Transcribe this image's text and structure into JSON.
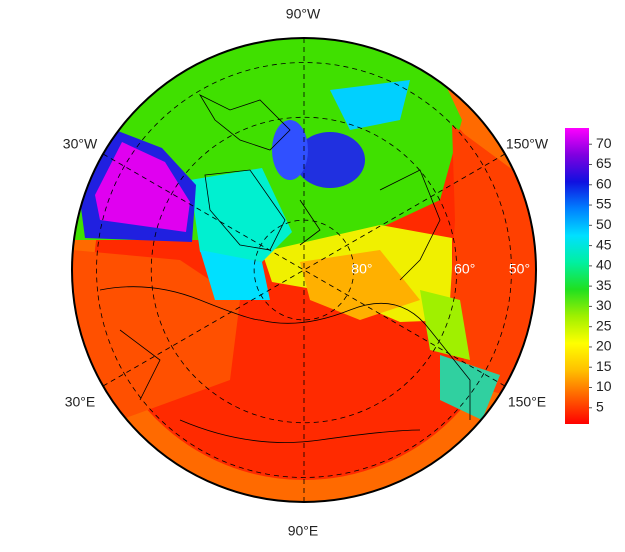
{
  "map": {
    "lon_labels": [
      "90°W",
      "150°W",
      "150°E",
      "90°E",
      "30°E",
      "30°W"
    ],
    "lat_circles": [
      {
        "value": 80,
        "label": "80°"
      },
      {
        "value": 60,
        "label": "60°"
      },
      {
        "value": 50,
        "label": "50°"
      }
    ],
    "colorbar": {
      "range": [
        1,
        74
      ],
      "ticks": [
        5,
        10,
        15,
        20,
        25,
        30,
        35,
        40,
        45,
        50,
        55,
        60,
        65,
        70
      ],
      "colors": [
        "#ff0000",
        "#ff6000",
        "#ffc000",
        "#ffff00",
        "#a0f000",
        "#20e020",
        "#00f0a0",
        "#00e0ff",
        "#0080ff",
        "#1010e0",
        "#8000e0",
        "#ff00ff"
      ]
    }
  }
}
